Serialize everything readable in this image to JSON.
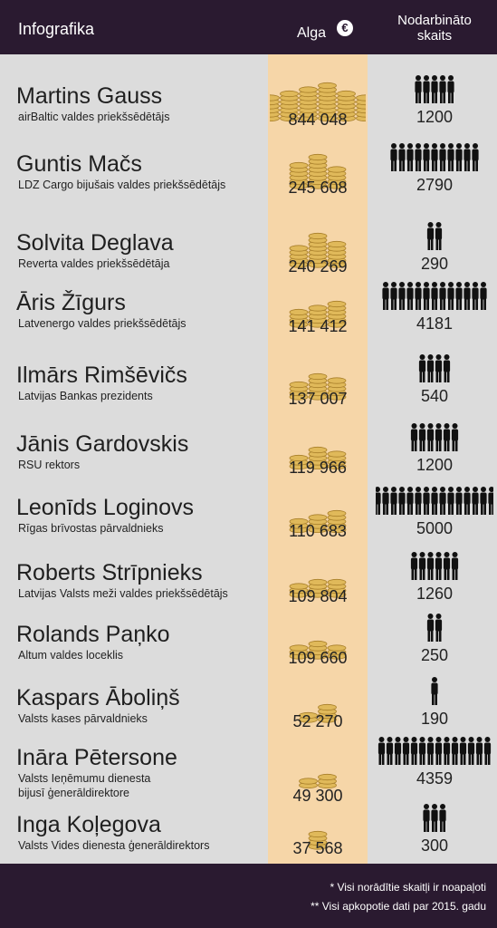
{
  "header": {
    "title": "Infografika",
    "salary_label": "Alga",
    "euro_symbol": "€",
    "employees_label_line1": "Nodarbināto",
    "employees_label_line2": "skaits"
  },
  "colors": {
    "header_bg": "#2a1a30",
    "page_bg": "#dcdcdc",
    "salary_column": "#f6d6a8",
    "coin": "#e0b95a",
    "coin_edge": "#a87f2a",
    "person": "#111111"
  },
  "chart_data": {
    "type": "table",
    "columns": [
      "Alga €",
      "Nodarbināto skaits"
    ],
    "rows": [
      {
        "name": "Martins Gauss",
        "role": [
          "airBaltic valdes priekšsēdētājs"
        ],
        "salary_label": "844 048",
        "salary": 844048,
        "employees_label": "1200",
        "employees": 1200,
        "coin_stacks": [
          6,
          7,
          8,
          9,
          7,
          6
        ],
        "people_icons": 5
      },
      {
        "name": "Guntis Mačs",
        "role": [
          "LDZ Cargo bijušais valdes priekšsēdētājs"
        ],
        "salary_label": "245 608",
        "salary": 245608,
        "employees_label": "2790",
        "employees": 2790,
        "coin_stacks": [
          6,
          8,
          5
        ],
        "people_icons": 11
      },
      {
        "name": "Solvita Deglava",
        "role": [
          "Reverta valdes priekšsēdētāja"
        ],
        "salary_label": "240 269",
        "salary": 240269,
        "employees_label": "290",
        "employees": 290,
        "coin_stacks": [
          5,
          8,
          6
        ],
        "people_icons": 2
      },
      {
        "name": "Āris Žīgurs",
        "role": [
          "Latvenergo valdes priekšsēdētājs"
        ],
        "salary_label": "141 412",
        "salary": 141412,
        "employees_label": "4181",
        "employees": 4181,
        "coin_stacks": [
          4,
          5,
          6
        ],
        "people_icons": 13
      },
      {
        "name": "Ilmārs Rimšēvičs",
        "role": [
          "Latvijas Bankas prezidents"
        ],
        "salary_label": "137 007",
        "salary": 137007,
        "employees_label": "540",
        "employees": 540,
        "coin_stacks": [
          4,
          6,
          5
        ],
        "people_icons": 4
      },
      {
        "name": "Jānis Gardovskis",
        "role": [
          "RSU rektors"
        ],
        "salary_label": "119 966",
        "salary": 119966,
        "employees_label": "1200",
        "employees": 1200,
        "coin_stacks": [
          3,
          5,
          4
        ],
        "people_icons": 6
      },
      {
        "name": "Leonīds Loginovs",
        "role": [
          "Rīgas brīvostas pārvaldnieks"
        ],
        "salary_label": "110 683",
        "salary": 110683,
        "employees_label": "5000",
        "employees": 5000,
        "coin_stacks": [
          3,
          4,
          5
        ],
        "people_icons": 15
      },
      {
        "name": "Roberts Strīpnieks",
        "role": [
          "Latvijas Valsts meži valdes priekšsēdētājs"
        ],
        "salary_label": "109 804",
        "salary": 109804,
        "employees_label": "1260",
        "employees": 1260,
        "coin_stacks": [
          3,
          4,
          4
        ],
        "people_icons": 6
      },
      {
        "name": "Rolands Paņko",
        "role": [
          "Altum valdes loceklis"
        ],
        "salary_label": "109 660",
        "salary": 109660,
        "employees_label": "250",
        "employees": 250,
        "coin_stacks": [
          3,
          4,
          3
        ],
        "people_icons": 2
      },
      {
        "name": "Kaspars Āboliņš",
        "role": [
          "Valsts kases pārvaldnieks"
        ],
        "salary_label": "52 270",
        "salary": 52270,
        "employees_label": "190",
        "employees": 190,
        "coin_stacks": [
          2,
          4
        ],
        "people_icons": 1
      },
      {
        "name": "Ināra Pētersone",
        "role": [
          "Valsts Ieņēmumu dienesta",
          "bijusī ģenerāldirektore"
        ],
        "salary_label": "49 300",
        "salary": 49300,
        "employees_label": "4359",
        "employees": 4359,
        "coin_stacks": [
          2,
          3
        ],
        "people_icons": 14
      },
      {
        "name": "Inga Koļegova",
        "role": [
          "Valsts Vides dienesta ģenerāldirektors"
        ],
        "salary_label": "37 568",
        "salary": 37568,
        "employees_label": "300",
        "employees": 300,
        "coin_stacks": [
          4
        ],
        "people_icons": 3
      }
    ]
  },
  "footer": {
    "note1": "* Visi norādītie skaitļi ir noapaļoti",
    "note2": "** Visi apkopotie dati par 2015. gadu"
  }
}
